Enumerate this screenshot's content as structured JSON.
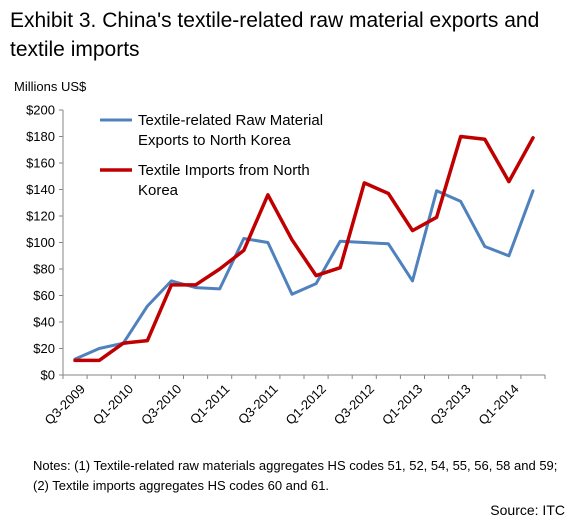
{
  "title_lines": [
    "Exhibit 3. China's textile-related raw material exports and",
    "textile imports"
  ],
  "notes": "Notes: (1) Textile-related raw materials aggregates HS codes 51, 52, 54, 55, 56, 58 and 59; (2) Textile imports aggregates HS codes 60 and 61.",
  "source": "Source: ITC",
  "chart_data": {
    "type": "line",
    "ylabel": "Millions US$",
    "ylim": [
      0,
      200
    ],
    "y_ticks": [
      "$0",
      "$20",
      "$40",
      "$60",
      "$80",
      "$100",
      "$120",
      "$140",
      "$160",
      "$180",
      "$200"
    ],
    "x": [
      "Q3-2009",
      "Q4-2009",
      "Q1-2010",
      "Q2-2010",
      "Q3-2010",
      "Q4-2010",
      "Q1-2011",
      "Q2-2011",
      "Q3-2011",
      "Q4-2011",
      "Q1-2012",
      "Q2-2012",
      "Q3-2012",
      "Q4-2012",
      "Q1-2013",
      "Q2-2013",
      "Q3-2013",
      "Q4-2013",
      "Q1-2014",
      "Q2-2014"
    ],
    "x_tick_labels": [
      "Q3-2009",
      "Q1-2010",
      "Q3-2010",
      "Q1-2011",
      "Q3-2011",
      "Q1-2012",
      "Q3-2012",
      "Q1-2013",
      "Q3-2013",
      "Q1-2014"
    ],
    "legend_position": "top-left",
    "series": [
      {
        "name": "Textile-related Raw Material Exports to North Korea",
        "legend_lines": [
          "Textile-related Raw Material",
          "Exports to North Korea"
        ],
        "color": "#4f81bd",
        "values": [
          12,
          20,
          24,
          52,
          71,
          66,
          65,
          103,
          100,
          61,
          69,
          101,
          100,
          99,
          71,
          139,
          131,
          97,
          90,
          139
        ]
      },
      {
        "name": "Textile Imports from North Korea",
        "legend_lines": [
          "Textile Imports from North",
          "Korea"
        ],
        "color": "#c00000",
        "values": [
          11,
          11,
          24,
          26,
          68,
          68,
          80,
          94,
          136,
          102,
          75,
          81,
          145,
          137,
          109,
          119,
          180,
          178,
          146,
          179
        ]
      }
    ],
    "grid": false
  }
}
